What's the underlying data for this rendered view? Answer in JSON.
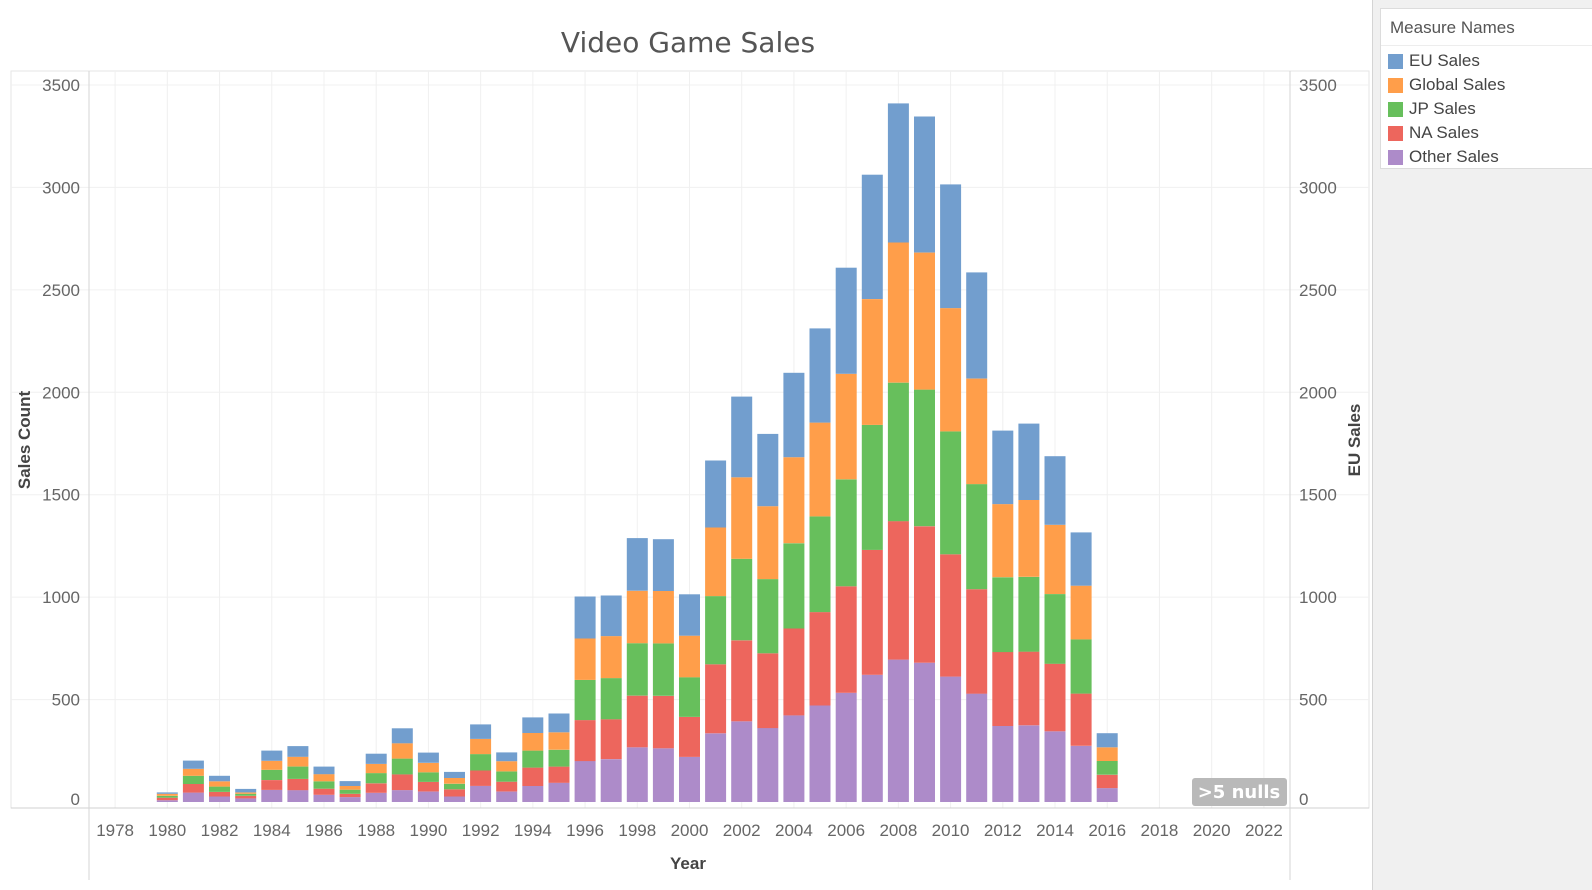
{
  "legend": {
    "title": "Measure Names",
    "items": [
      {
        "label": "EU Sales",
        "color": "#729ECE"
      },
      {
        "label": "Global Sales",
        "color": "#FF9E4A"
      },
      {
        "label": "JP Sales",
        "color": "#67BF5C"
      },
      {
        "label": "NA Sales",
        "color": "#ED665D"
      },
      {
        "label": "Other Sales",
        "color": "#AD8BC9"
      }
    ]
  },
  "nulls_indicator": ">5 nulls",
  "chart_data": {
    "type": "bar",
    "stacked": true,
    "title": "Video Game Sales",
    "xlabel": "Year",
    "ylabel": "Sales Count",
    "y2label": "EU Sales",
    "xlim": [
      1977,
      2023
    ],
    "ylim": [
      -50,
      3550
    ],
    "x_ticks": [
      1978,
      1980,
      1982,
      1984,
      1986,
      1988,
      1990,
      1992,
      1994,
      1996,
      1998,
      2000,
      2002,
      2004,
      2006,
      2008,
      2010,
      2012,
      2014,
      2016,
      2018,
      2020,
      2022
    ],
    "y_ticks": [
      0,
      500,
      1000,
      1500,
      2000,
      2500,
      3000,
      3500
    ],
    "grid": true,
    "legend_position": "right",
    "x": [
      1980,
      1981,
      1982,
      1983,
      1984,
      1985,
      1986,
      1987,
      1988,
      1989,
      1990,
      1991,
      1992,
      1993,
      1994,
      1995,
      1996,
      1997,
      1998,
      1999,
      2000,
      2001,
      2002,
      2003,
      2004,
      2005,
      2006,
      2007,
      2008,
      2009,
      2010,
      2011,
      2012,
      2013,
      2014,
      2015,
      2016
    ],
    "series": [
      {
        "name": "Other Sales",
        "values": [
          9,
          46,
          27,
          18,
          59,
          58,
          35,
          24,
          45,
          58,
          51,
          27,
          79,
          51,
          78,
          94,
          200,
          209,
          267,
          262,
          220,
          335,
          394,
          361,
          423,
          471,
          533,
          621,
          695,
          680,
          612,
          529,
          371,
          374,
          345,
          274,
          68
        ]
      },
      {
        "name": "NA Sales",
        "values": [
          12,
          42,
          22,
          12,
          48,
          55,
          30,
          16,
          46,
          77,
          47,
          35,
          75,
          48,
          90,
          79,
          200,
          195,
          252,
          256,
          195,
          337,
          395,
          365,
          424,
          456,
          520,
          610,
          676,
          666,
          597,
          510,
          361,
          360,
          330,
          255,
          65
        ]
      },
      {
        "name": "JP Sales",
        "values": [
          9,
          40,
          26,
          10,
          50,
          60,
          36,
          20,
          50,
          77,
          47,
          27,
          80,
          50,
          83,
          82,
          196,
          201,
          256,
          256,
          194,
          333,
          398,
          362,
          416,
          467,
          522,
          610,
          676,
          667,
          600,
          513,
          365,
          365,
          340,
          265,
          67
        ]
      },
      {
        "name": "Global Sales",
        "values": [
          10,
          34,
          26,
          7,
          44,
          48,
          35,
          18,
          45,
          75,
          46,
          28,
          74,
          50,
          86,
          85,
          202,
          205,
          256,
          256,
          203,
          335,
          398,
          356,
          420,
          458,
          515,
          614,
          684,
          669,
          602,
          515,
          357,
          375,
          338,
          262,
          67
        ]
      },
      {
        "name": "EU Sales",
        "values": [
          7,
          40,
          27,
          17,
          50,
          52,
          37,
          24,
          50,
          73,
          50,
          30,
          71,
          43,
          76,
          92,
          205,
          198,
          257,
          253,
          202,
          327,
          394,
          353,
          412,
          460,
          518,
          607,
          679,
          664,
          604,
          518,
          359,
          373,
          335,
          260,
          69
        ]
      }
    ]
  }
}
